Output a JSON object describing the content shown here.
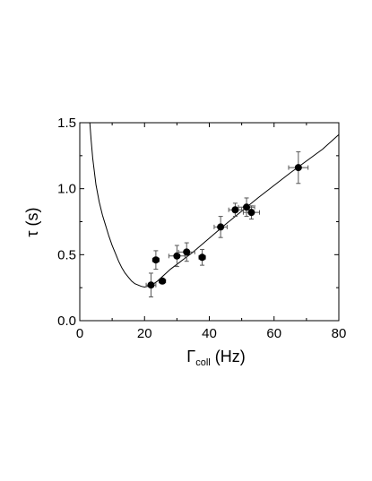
{
  "chart_data": {
    "type": "scatter",
    "title": "",
    "xlabel": "Γ",
    "xlabel_subscript": "coll",
    "xlabel_unit": " (Hz)",
    "ylabel": "τ (s)",
    "xlim": [
      0,
      80
    ],
    "ylim": [
      0,
      1.5
    ],
    "x_ticks": [
      0,
      20,
      40,
      60,
      80
    ],
    "x_tick_labels": [
      "0",
      "20",
      "40",
      "60",
      "80"
    ],
    "y_ticks": [
      0,
      0.5,
      1.0,
      1.5
    ],
    "y_tick_labels": [
      "0.0",
      "0.5",
      "1.0",
      "1.5"
    ],
    "grid": false,
    "legend": false,
    "points": [
      {
        "x": 22.0,
        "y": 0.27,
        "xerr": 1.5,
        "yerr": 0.09
      },
      {
        "x": 23.5,
        "y": 0.46,
        "xerr": 1.0,
        "yerr": 0.07
      },
      {
        "x": 25.5,
        "y": 0.3,
        "xerr": 1.0,
        "yerr": 0.02
      },
      {
        "x": 30.0,
        "y": 0.49,
        "xerr": 2.5,
        "yerr": 0.08
      },
      {
        "x": 33.0,
        "y": 0.52,
        "xerr": 2.5,
        "yerr": 0.07
      },
      {
        "x": 37.8,
        "y": 0.48,
        "xerr": 1.0,
        "yerr": 0.06
      },
      {
        "x": 43.5,
        "y": 0.71,
        "xerr": 2.0,
        "yerr": 0.08
      },
      {
        "x": 48.0,
        "y": 0.84,
        "xerr": 2.0,
        "yerr": 0.05
      },
      {
        "x": 51.5,
        "y": 0.86,
        "xerr": 2.5,
        "yerr": 0.07
      },
      {
        "x": 53.0,
        "y": 0.82,
        "xerr": 2.5,
        "yerr": 0.05
      },
      {
        "x": 67.5,
        "y": 1.16,
        "xerr": 3.0,
        "yerr": 0.12
      }
    ],
    "fit_curve": [
      [
        3.1,
        1.5
      ],
      [
        3.5,
        1.37
      ],
      [
        4,
        1.23
      ],
      [
        5,
        1.03
      ],
      [
        6,
        0.9
      ],
      [
        7,
        0.8
      ],
      [
        8,
        0.72
      ],
      [
        9,
        0.64
      ],
      [
        10,
        0.57
      ],
      [
        11,
        0.51
      ],
      [
        12,
        0.45
      ],
      [
        13,
        0.4
      ],
      [
        14,
        0.36
      ],
      [
        15,
        0.33
      ],
      [
        16,
        0.3
      ],
      [
        17,
        0.28
      ],
      [
        18,
        0.27
      ],
      [
        19,
        0.26
      ],
      [
        20,
        0.255
      ],
      [
        21,
        0.26
      ],
      [
        22,
        0.265
      ],
      [
        24,
        0.3
      ],
      [
        28,
        0.39
      ],
      [
        35,
        0.52
      ],
      [
        45,
        0.73
      ],
      [
        55,
        0.93
      ],
      [
        65,
        1.12
      ],
      [
        75,
        1.3
      ],
      [
        80,
        1.41
      ]
    ],
    "colors": {
      "axis": "#000000",
      "marker": "#000000",
      "curve": "#000000",
      "errorbar": "#555555"
    }
  }
}
